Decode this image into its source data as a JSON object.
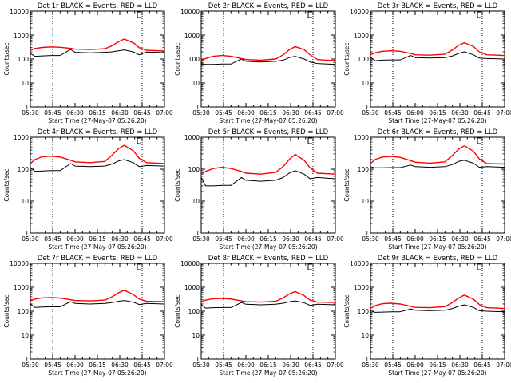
{
  "colors": {
    "events": "#000000",
    "lld": "#ff0000",
    "axis": "#000000",
    "background": "#ffffff"
  },
  "chart_data": [
    {
      "type": "line",
      "title": "Det 1r BLACK = Events, RED = LLD",
      "xlabel": "Start Time (27-May-07 05:26:20)",
      "ylabel": "Counts/sec",
      "xlim": [
        "05:30",
        "07:00"
      ],
      "ylim": [
        1,
        10000
      ],
      "yscale": "log",
      "grid": false,
      "x_tick_labels": [
        "05:30",
        "05:45",
        "06:00",
        "06:15",
        "06:30",
        "06:45",
        "07:00"
      ],
      "y_tick_labels": [
        "1",
        "10",
        "100",
        "1000",
        "10000"
      ],
      "marker_lines": [
        "05:45",
        "06:45"
      ],
      "legend": "in title",
      "x": [
        "05:30",
        "05:33",
        "05:38",
        "05:44",
        "05:50",
        "05:57",
        "06:00",
        "06:10",
        "06:20",
        "06:25",
        "06:29",
        "06:33",
        "06:39",
        "06:43",
        "06:48",
        "07:00"
      ],
      "series": [
        {
          "name": "LLD",
          "color": "#ff0000",
          "values": [
            230,
            275,
            305,
            320,
            310,
            280,
            260,
            250,
            270,
            360,
            520,
            680,
            480,
            300,
            230,
            215
          ]
        },
        {
          "name": "Events",
          "color": "#000000",
          "values": [
            170,
            130,
            135,
            140,
            140,
            250,
            190,
            180,
            190,
            200,
            220,
            240,
            200,
            150,
            195,
            185
          ]
        }
      ]
    },
    {
      "type": "line",
      "title": "Det 2r BLACK = Events, RED = LLD",
      "xlabel": "Start Time (27-May-07 05:26:20)",
      "ylabel": "Counts/sec",
      "xlim": [
        "05:30",
        "07:00"
      ],
      "ylim": [
        1,
        10000
      ],
      "yscale": "log",
      "grid": false,
      "x_tick_labels": [
        "05:30",
        "05:45",
        "06:00",
        "06:15",
        "06:30",
        "06:45",
        "07:00"
      ],
      "y_tick_labels": [
        "1",
        "10",
        "100",
        "1000",
        "10000"
      ],
      "marker_lines": [
        "05:45",
        "06:45"
      ],
      "legend": "in title",
      "x": [
        "05:30",
        "05:33",
        "05:38",
        "05:44",
        "05:50",
        "05:57",
        "06:00",
        "06:10",
        "06:20",
        "06:25",
        "06:29",
        "06:33",
        "06:39",
        "06:43",
        "06:48",
        "07:00"
      ],
      "series": [
        {
          "name": "LLD",
          "color": "#ff0000",
          "values": [
            85,
            105,
            130,
            140,
            130,
            105,
            95,
            90,
            100,
            150,
            240,
            330,
            250,
            150,
            95,
            85
          ]
        },
        {
          "name": "Events",
          "color": "#000000",
          "values": [
            65,
            60,
            60,
            62,
            62,
            100,
            80,
            75,
            80,
            90,
            115,
            130,
            100,
            75,
            65,
            60
          ]
        }
      ]
    },
    {
      "type": "line",
      "title": "Det 3r BLACK = Events, RED = LLD",
      "xlabel": "Start Time (27-May-07 05:26:20)",
      "ylabel": "Counts/sec",
      "xlim": [
        "05:30",
        "07:00"
      ],
      "ylim": [
        1,
        10000
      ],
      "yscale": "log",
      "grid": false,
      "x_tick_labels": [
        "05:30",
        "05:45",
        "06:00",
        "06:15",
        "06:30",
        "06:45",
        "07:00"
      ],
      "y_tick_labels": [
        "1",
        "10",
        "100",
        "1000",
        "10000"
      ],
      "marker_lines": [
        "05:45",
        "06:45"
      ],
      "legend": "in title",
      "x": [
        "05:30",
        "05:33",
        "05:38",
        "05:44",
        "05:50",
        "05:57",
        "06:00",
        "06:10",
        "06:20",
        "06:25",
        "06:29",
        "06:33",
        "06:39",
        "06:43",
        "06:48",
        "07:00"
      ],
      "series": [
        {
          "name": "LLD",
          "color": "#ff0000",
          "values": [
            150,
            180,
            210,
            220,
            210,
            170,
            150,
            145,
            160,
            240,
            370,
            480,
            340,
            200,
            150,
            140
          ]
        },
        {
          "name": "Events",
          "color": "#000000",
          "values": [
            120,
            85,
            90,
            92,
            92,
            140,
            115,
            110,
            115,
            135,
            170,
            200,
            150,
            110,
            105,
            100
          ]
        }
      ]
    },
    {
      "type": "line",
      "title": "Det 4r BLACK = Events, RED = LLD",
      "xlabel": "Start Time (27-May-07 05:26:20)",
      "ylabel": "Counts/sec",
      "xlim": [
        "05:30",
        "07:00"
      ],
      "ylim": [
        1,
        1000
      ],
      "yscale": "log",
      "grid": false,
      "x_tick_labels": [
        "05:30",
        "05:45",
        "06:00",
        "06:15",
        "06:30",
        "06:45",
        "07:00"
      ],
      "y_tick_labels": [
        "1",
        "10",
        "100",
        "1000"
      ],
      "marker_lines": [
        "05:45",
        "06:45"
      ],
      "legend": "in title",
      "x": [
        "05:30",
        "05:33",
        "05:38",
        "05:44",
        "05:50",
        "05:57",
        "06:00",
        "06:10",
        "06:20",
        "06:25",
        "06:29",
        "06:33",
        "06:39",
        "06:43",
        "06:48",
        "07:00"
      ],
      "series": [
        {
          "name": "LLD",
          "color": "#ff0000",
          "values": [
            150,
            200,
            245,
            255,
            240,
            190,
            170,
            160,
            175,
            280,
            430,
            560,
            380,
            220,
            160,
            150
          ]
        },
        {
          "name": "Events",
          "color": "#000000",
          "values": [
            115,
            85,
            88,
            90,
            90,
            150,
            125,
            120,
            125,
            145,
            180,
            200,
            160,
            120,
            130,
            125
          ]
        }
      ]
    },
    {
      "type": "line",
      "title": "Det 5r BLACK = Events, RED = LLD",
      "xlabel": "Start Time (27-May-07 05:26:20)",
      "ylabel": "Counts/sec",
      "xlim": [
        "05:30",
        "07:00"
      ],
      "ylim": [
        1,
        1000
      ],
      "yscale": "log",
      "grid": false,
      "x_tick_labels": [
        "05:30",
        "05:45",
        "06:00",
        "06:15",
        "06:30",
        "06:45",
        "07:00"
      ],
      "y_tick_labels": [
        "1",
        "10",
        "100",
        "1000"
      ],
      "marker_lines": [
        "05:45",
        "06:45"
      ],
      "legend": "in title",
      "x": [
        "05:30",
        "05:33",
        "05:38",
        "05:44",
        "05:50",
        "05:57",
        "06:00",
        "06:10",
        "06:20",
        "06:25",
        "06:29",
        "06:33",
        "06:39",
        "06:43",
        "06:48",
        "07:00"
      ],
      "series": [
        {
          "name": "LLD",
          "color": "#ff0000",
          "values": [
            70,
            85,
            105,
            115,
            105,
            85,
            75,
            70,
            80,
            120,
            200,
            290,
            190,
            110,
            75,
            70
          ]
        },
        {
          "name": "Events",
          "color": "#000000",
          "values": [
            55,
            30,
            30,
            31,
            31,
            55,
            45,
            42,
            45,
            55,
            75,
            90,
            70,
            50,
            55,
            50
          ]
        }
      ]
    },
    {
      "type": "line",
      "title": "Det 6r BLACK = Events, RED = LLD",
      "xlabel": "Start Time (27-May-07 05:26:20)",
      "ylabel": "Counts/sec",
      "xlim": [
        "05:30",
        "07:00"
      ],
      "ylim": [
        1,
        1000
      ],
      "yscale": "log",
      "grid": false,
      "x_tick_labels": [
        "05:30",
        "05:45",
        "06:00",
        "06:15",
        "06:30",
        "06:45",
        "07:00"
      ],
      "y_tick_labels": [
        "1",
        "10",
        "100",
        "1000"
      ],
      "marker_lines": [
        "05:45",
        "06:45"
      ],
      "legend": "in title",
      "x": [
        "05:30",
        "05:33",
        "05:38",
        "05:44",
        "05:50",
        "05:57",
        "06:00",
        "06:10",
        "06:20",
        "06:25",
        "06:29",
        "06:33",
        "06:39",
        "06:43",
        "06:48",
        "07:00"
      ],
      "series": [
        {
          "name": "LLD",
          "color": "#ff0000",
          "values": [
            150,
            200,
            240,
            250,
            235,
            185,
            165,
            155,
            170,
            270,
            420,
            540,
            370,
            210,
            150,
            145
          ]
        },
        {
          "name": "Events",
          "color": "#000000",
          "values": [
            120,
            110,
            110,
            112,
            112,
            135,
            120,
            115,
            120,
            140,
            175,
            190,
            155,
            115,
            120,
            115
          ]
        }
      ]
    },
    {
      "type": "line",
      "title": "Det 7r BLACK = Events, RED = LLD",
      "xlabel": "Start Time (27-May-07 05:26:20)",
      "ylabel": "Counts/sec",
      "xlim": [
        "05:30",
        "07:00"
      ],
      "ylim": [
        1,
        10000
      ],
      "yscale": "log",
      "grid": false,
      "x_tick_labels": [
        "05:30",
        "05:45",
        "06:00",
        "06:15",
        "06:30",
        "06:45",
        "07:00"
      ],
      "y_tick_labels": [
        "1",
        "10",
        "100",
        "1000",
        "10000"
      ],
      "marker_lines": [
        "05:45",
        "06:45"
      ],
      "legend": "in title",
      "x": [
        "05:30",
        "05:33",
        "05:38",
        "05:44",
        "05:50",
        "05:57",
        "06:00",
        "06:10",
        "06:20",
        "06:25",
        "06:29",
        "06:33",
        "06:39",
        "06:43",
        "06:48",
        "07:00"
      ],
      "series": [
        {
          "name": "LLD",
          "color": "#ff0000",
          "values": [
            270,
            320,
            360,
            370,
            355,
            300,
            280,
            270,
            290,
            400,
            580,
            750,
            500,
            320,
            260,
            250
          ]
        },
        {
          "name": "Events",
          "color": "#000000",
          "values": [
            200,
            145,
            150,
            152,
            152,
            250,
            210,
            200,
            210,
            230,
            260,
            280,
            240,
            190,
            210,
            200
          ]
        }
      ]
    },
    {
      "type": "line",
      "title": "Det 8r BLACK = Events, RED = LLD",
      "xlabel": "Start Time (27-May-07 05:26:20)",
      "ylabel": "Counts/sec",
      "xlim": [
        "05:30",
        "07:00"
      ],
      "ylim": [
        1,
        10000
      ],
      "yscale": "log",
      "grid": false,
      "x_tick_labels": [
        "05:30",
        "05:45",
        "06:00",
        "06:15",
        "06:30",
        "06:45",
        "07:00"
      ],
      "y_tick_labels": [
        "1",
        "10",
        "100",
        "1000",
        "10000"
      ],
      "marker_lines": [
        "05:45",
        "06:45"
      ],
      "legend": "in title",
      "x": [
        "05:30",
        "05:33",
        "05:38",
        "05:44",
        "05:50",
        "05:57",
        "06:00",
        "06:10",
        "06:20",
        "06:25",
        "06:29",
        "06:33",
        "06:39",
        "06:43",
        "06:48",
        "07:00"
      ],
      "series": [
        {
          "name": "LLD",
          "color": "#ff0000",
          "values": [
            250,
            290,
            330,
            340,
            320,
            270,
            250,
            240,
            260,
            360,
            520,
            660,
            450,
            290,
            240,
            230
          ]
        },
        {
          "name": "Events",
          "color": "#000000",
          "values": [
            190,
            135,
            140,
            142,
            142,
            230,
            195,
            185,
            195,
            215,
            245,
            270,
            225,
            175,
            195,
            185
          ]
        }
      ]
    },
    {
      "type": "line",
      "title": "Det 9r BLACK = Events, RED = LLD",
      "xlabel": "Start Time (27-May-07 05:26:20)",
      "ylabel": "Counts/sec",
      "xlim": [
        "05:30",
        "07:00"
      ],
      "ylim": [
        1,
        10000
      ],
      "yscale": "log",
      "grid": false,
      "x_tick_labels": [
        "05:30",
        "05:45",
        "06:00",
        "06:15",
        "06:30",
        "06:45",
        "07:00"
      ],
      "y_tick_labels": [
        "1",
        "10",
        "100",
        "1000",
        "10000"
      ],
      "marker_lines": [
        "05:45",
        "06:45"
      ],
      "legend": "in title",
      "x": [
        "05:30",
        "05:33",
        "05:38",
        "05:44",
        "05:50",
        "05:57",
        "06:00",
        "06:10",
        "06:20",
        "06:25",
        "06:29",
        "06:33",
        "06:39",
        "06:43",
        "06:48",
        "07:00"
      ],
      "series": [
        {
          "name": "LLD",
          "color": "#ff0000",
          "values": [
            130,
            170,
            205,
            215,
            200,
            160,
            145,
            140,
            155,
            230,
            350,
            470,
            320,
            190,
            140,
            130
          ]
        },
        {
          "name": "Events",
          "color": "#000000",
          "values": [
            105,
            90,
            92,
            95,
            95,
            125,
            110,
            105,
            110,
            130,
            160,
            185,
            145,
            105,
            100,
            95
          ]
        }
      ]
    }
  ]
}
